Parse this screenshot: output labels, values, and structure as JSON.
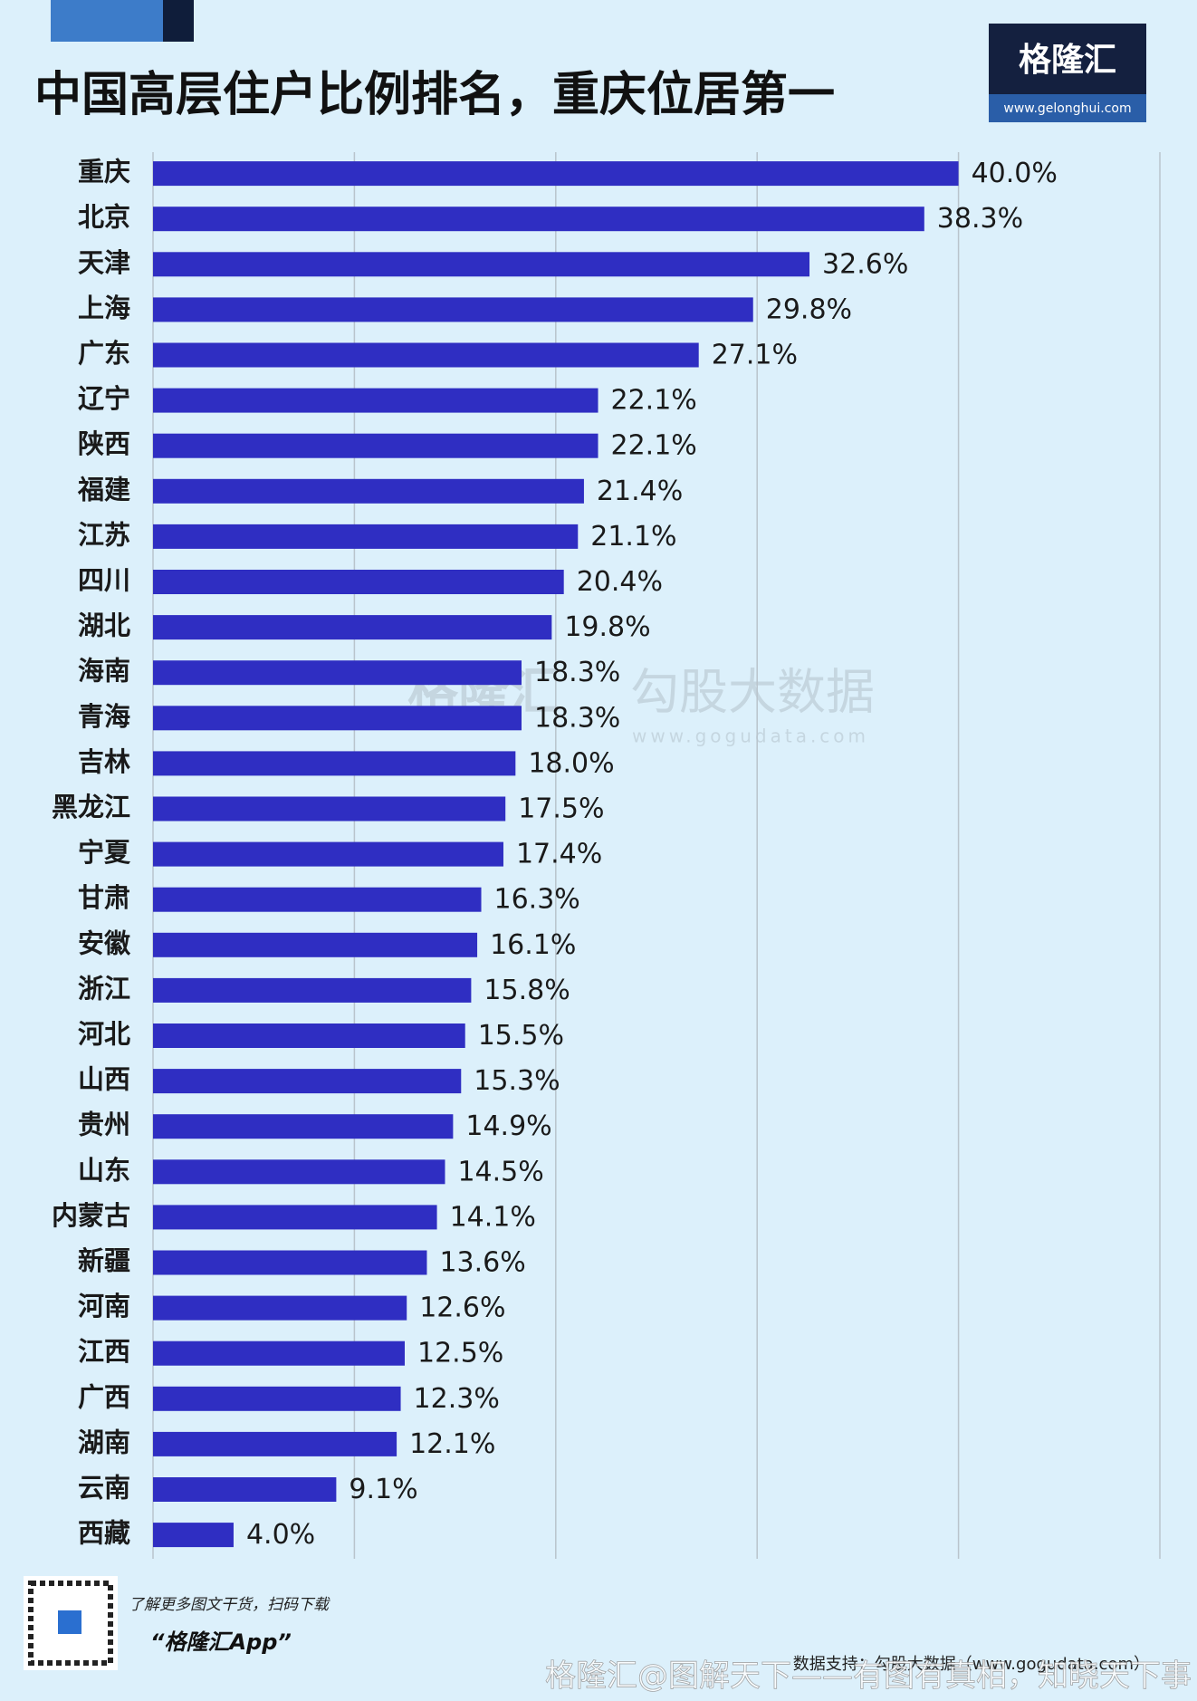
{
  "chart_data": {
    "type": "hbar",
    "title": "中国高层住户比例排名，重庆位居第一",
    "categories": [
      "重庆",
      "北京",
      "天津",
      "上海",
      "广东",
      "辽宁",
      "陕西",
      "福建",
      "江苏",
      "四川",
      "湖北",
      "海南",
      "青海",
      "吉林",
      "黑龙江",
      "宁夏",
      "甘肃",
      "安徽",
      "浙江",
      "河北",
      "山西",
      "贵州",
      "山东",
      "内蒙古",
      "新疆",
      "河南",
      "江西",
      "广西",
      "湖南",
      "云南",
      "西藏"
    ],
    "values": [
      40.0,
      38.3,
      32.6,
      29.8,
      27.1,
      22.1,
      22.1,
      21.4,
      21.1,
      20.4,
      19.8,
      18.3,
      18.3,
      18.0,
      17.5,
      17.4,
      16.3,
      16.1,
      15.8,
      15.5,
      15.3,
      14.9,
      14.5,
      14.1,
      13.6,
      12.6,
      12.5,
      12.3,
      12.1,
      9.1,
      4.0
    ],
    "value_labels": [
      "40.0%",
      "38.3%",
      "32.6%",
      "29.8%",
      "27.1%",
      "22.1%",
      "22.1%",
      "21.4%",
      "21.1%",
      "20.4%",
      "19.8%",
      "18.3%",
      "18.3%",
      "18.0%",
      "17.5%",
      "17.4%",
      "16.3%",
      "16.1%",
      "15.8%",
      "15.5%",
      "15.3%",
      "14.9%",
      "14.5%",
      "14.1%",
      "13.6%",
      "12.6%",
      "12.5%",
      "12.3%",
      "12.1%",
      "9.1%",
      "4.0%"
    ],
    "color": "#2f2ec2",
    "xlim": [
      0,
      50
    ],
    "xticks": [
      0,
      10,
      20,
      30,
      40,
      50
    ],
    "grid": true
  },
  "logo": {
    "name": "格隆汇",
    "url": "www.gelonghui.com"
  },
  "watermark": {
    "left": "格隆汇",
    "right": "勾股大数据",
    "url": "www.gogudata.com"
  },
  "footer": {
    "scan": "了解更多图文干货，扫码下载",
    "app": "“格隆汇App”",
    "source": "数据支持：勾股大数据（www.gogudata.com）",
    "credit": "格隆汇@图解天下——有图有真相，知晓天下事"
  }
}
